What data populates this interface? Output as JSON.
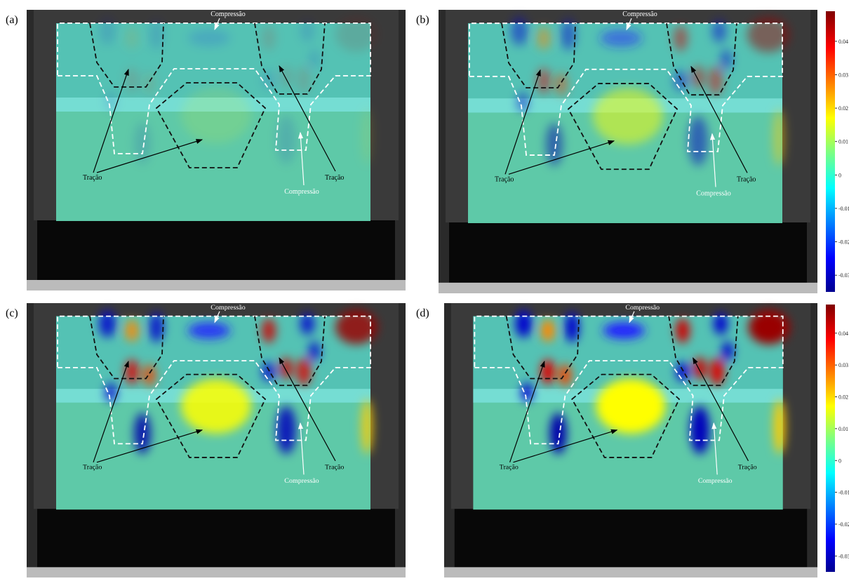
{
  "panels": [
    {
      "label": "(a)",
      "annotations": {
        "top_compression": "Compressão",
        "left_traction": "Tração",
        "right_traction": "Tração",
        "bottom_compression": "Compressão"
      }
    },
    {
      "label": "(b)",
      "annotations": {
        "top_compression": "Compressão",
        "left_traction": "Tração",
        "right_traction": "Tração",
        "bottom_compression": "Compressão"
      }
    },
    {
      "label": "(c)",
      "annotations": {
        "top_compression": "Compressão",
        "left_traction": "Tração",
        "right_traction": "Tração",
        "bottom_compression": "Compressão"
      }
    },
    {
      "label": "(d)",
      "annotations": {
        "top_compression": "Compressão",
        "left_traction": "Tração",
        "right_traction": "Tração",
        "bottom_compression": "Compressão"
      }
    }
  ],
  "colorbar": {
    "lim": [
      -0.035,
      0.049
    ],
    "ticks": [
      0.04,
      0.03,
      0.02,
      0.01,
      0,
      -0.01,
      -0.02,
      -0.03
    ]
  }
}
